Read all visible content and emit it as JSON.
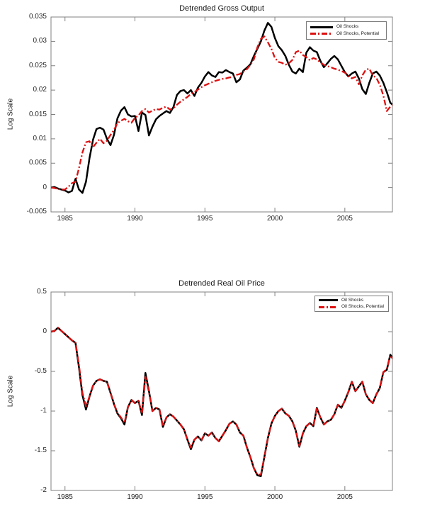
{
  "figure": {
    "background": "#ffffff",
    "axis_color": "#808080",
    "text_color": "#262626"
  },
  "chart_data": [
    {
      "type": "line",
      "title": "Detrended Gross Output",
      "xlabel": "",
      "ylabel": "Log Scale",
      "xlim": [
        1984,
        2008.4
      ],
      "ylim": [
        -0.005,
        0.035
      ],
      "xticks": [
        1985,
        1990,
        1995,
        2000,
        2005
      ],
      "xtick_labels": [
        "1985",
        "1990",
        "1995",
        "2000",
        "2005"
      ],
      "yticks": [
        -0.005,
        0,
        0.005,
        0.01,
        0.015,
        0.02,
        0.025,
        0.03,
        0.035
      ],
      "ytick_labels": [
        "-0.005",
        "0",
        "0.005",
        "0.01",
        "0.015",
        "0.02",
        "0.025",
        "0.03",
        "0.035"
      ],
      "grid": false,
      "legend_position": "top-right",
      "x_start": 1984,
      "x_step": 0.25,
      "series": [
        {
          "name": "Oil Shocks",
          "color": "#000000",
          "style": "solid",
          "line_width": 2.5,
          "values": [
            0.0,
            0.0001,
            -0.0002,
            -0.0004,
            -0.0006,
            -0.001,
            -0.0007,
            0.0018,
            -0.0004,
            -0.0011,
            0.0012,
            0.006,
            0.0098,
            0.012,
            0.0123,
            0.0119,
            0.01,
            0.0087,
            0.0108,
            0.0142,
            0.0158,
            0.0165,
            0.015,
            0.0146,
            0.0147,
            0.0116,
            0.0154,
            0.0149,
            0.0107,
            0.0125,
            0.014,
            0.0147,
            0.0152,
            0.0157,
            0.0153,
            0.0165,
            0.019,
            0.0198,
            0.02,
            0.0193,
            0.02,
            0.0188,
            0.0205,
            0.0215,
            0.0228,
            0.0237,
            0.023,
            0.0227,
            0.0237,
            0.0236,
            0.0241,
            0.0237,
            0.0234,
            0.0216,
            0.0222,
            0.024,
            0.0246,
            0.0253,
            0.027,
            0.0285,
            0.03,
            0.0322,
            0.0338,
            0.033,
            0.0307,
            0.029,
            0.0282,
            0.027,
            0.0252,
            0.0238,
            0.0234,
            0.0244,
            0.0237,
            0.0277,
            0.0288,
            0.0281,
            0.0278,
            0.026,
            0.0247,
            0.0255,
            0.0264,
            0.027,
            0.0263,
            0.025,
            0.0237,
            0.0228,
            0.0234,
            0.0238,
            0.0224,
            0.0202,
            0.0192,
            0.0215,
            0.0234,
            0.0238,
            0.023,
            0.0215,
            0.0196,
            0.0174,
            0.0168
          ]
        },
        {
          "name": "Oil Shocks, Potential",
          "color": "#dd1111",
          "style": "dash-dot",
          "line_width": 2.3,
          "values": [
            0.0,
            -0.0001,
            -0.0003,
            -0.0004,
            -0.0004,
            0.0002,
            0.0009,
            0.0012,
            0.004,
            0.0072,
            0.0093,
            0.0095,
            0.0083,
            0.0092,
            0.01,
            0.0091,
            0.0096,
            0.0108,
            0.0118,
            0.0132,
            0.0137,
            0.0141,
            0.0136,
            0.0133,
            0.0143,
            0.0148,
            0.0157,
            0.0161,
            0.0154,
            0.0158,
            0.0161,
            0.016,
            0.0164,
            0.0166,
            0.016,
            0.0163,
            0.017,
            0.0176,
            0.0181,
            0.0186,
            0.0192,
            0.0196,
            0.0201,
            0.0206,
            0.021,
            0.0213,
            0.0216,
            0.0219,
            0.0221,
            0.0223,
            0.0224,
            0.0226,
            0.0227,
            0.0231,
            0.0233,
            0.0238,
            0.0243,
            0.0252,
            0.0263,
            0.0288,
            0.0305,
            0.031,
            0.0298,
            0.0285,
            0.0266,
            0.0258,
            0.0256,
            0.0252,
            0.0255,
            0.0262,
            0.0278,
            0.0281,
            0.0272,
            0.0268,
            0.0261,
            0.0266,
            0.0263,
            0.0257,
            0.0252,
            0.0249,
            0.0247,
            0.0244,
            0.0242,
            0.0239,
            0.0236,
            0.0229,
            0.0224,
            0.0227,
            0.0212,
            0.023,
            0.0242,
            0.0244,
            0.023,
            0.0225,
            0.0211,
            0.0189,
            0.0157,
            0.0166,
            0.0171
          ]
        }
      ]
    },
    {
      "type": "line",
      "title": "Detrended Real Oil Price",
      "xlabel": "",
      "ylabel": "Log Scale",
      "xlim": [
        1984,
        2008.4
      ],
      "ylim": [
        -2,
        0.5
      ],
      "xticks": [
        1985,
        1990,
        1995,
        2000,
        2005
      ],
      "xtick_labels": [
        "1985",
        "1990",
        "1995",
        "2000",
        "2005"
      ],
      "yticks": [
        -2,
        -1.5,
        -1,
        -0.5,
        0,
        0.5
      ],
      "ytick_labels": [
        "-2",
        "-1.5",
        "-1",
        "-0.5",
        "0",
        "0.5"
      ],
      "grid": false,
      "legend_position": "top-right",
      "x_start": 1984,
      "x_step": 0.25,
      "series": [
        {
          "name": "Oil Shocks",
          "color": "#000000",
          "style": "solid",
          "line_width": 2.5,
          "values": [
            0.0,
            0.01,
            0.05,
            0.01,
            -0.03,
            -0.07,
            -0.11,
            -0.14,
            -0.45,
            -0.8,
            -0.98,
            -0.82,
            -0.68,
            -0.62,
            -0.6,
            -0.62,
            -0.63,
            -0.77,
            -0.91,
            -1.03,
            -1.09,
            -1.17,
            -0.95,
            -0.86,
            -0.9,
            -0.87,
            -1.05,
            -0.52,
            -0.75,
            -1.0,
            -0.96,
            -0.98,
            -1.2,
            -1.08,
            -1.04,
            -1.07,
            -1.12,
            -1.17,
            -1.23,
            -1.36,
            -1.48,
            -1.36,
            -1.32,
            -1.37,
            -1.28,
            -1.31,
            -1.27,
            -1.34,
            -1.38,
            -1.31,
            -1.24,
            -1.16,
            -1.13,
            -1.17,
            -1.27,
            -1.31,
            -1.46,
            -1.58,
            -1.72,
            -1.81,
            -1.82,
            -1.58,
            -1.34,
            -1.16,
            -1.06,
            -1.0,
            -0.97,
            -1.03,
            -1.06,
            -1.13,
            -1.25,
            -1.45,
            -1.28,
            -1.19,
            -1.15,
            -1.19,
            -0.96,
            -1.08,
            -1.17,
            -1.13,
            -1.11,
            -1.04,
            -0.92,
            -0.96,
            -0.87,
            -0.76,
            -0.63,
            -0.75,
            -0.69,
            -0.63,
            -0.79,
            -0.86,
            -0.9,
            -0.79,
            -0.71,
            -0.51,
            -0.48,
            -0.29,
            -0.35
          ]
        },
        {
          "name": "Oil Shocks, Potential",
          "color": "#dd1111",
          "style": "dash-dot",
          "line_width": 2.3,
          "values": [
            0.0,
            0.01,
            0.05,
            0.01,
            -0.03,
            -0.07,
            -0.11,
            -0.14,
            -0.42,
            -0.77,
            -0.94,
            -0.82,
            -0.68,
            -0.62,
            -0.6,
            -0.62,
            -0.63,
            -0.77,
            -0.91,
            -1.02,
            -1.08,
            -1.15,
            -0.95,
            -0.86,
            -0.9,
            -0.87,
            -1.03,
            -0.57,
            -0.76,
            -1.0,
            -0.96,
            -0.98,
            -1.19,
            -1.08,
            -1.04,
            -1.07,
            -1.12,
            -1.17,
            -1.23,
            -1.36,
            -1.46,
            -1.36,
            -1.32,
            -1.37,
            -1.28,
            -1.31,
            -1.27,
            -1.34,
            -1.38,
            -1.31,
            -1.24,
            -1.16,
            -1.13,
            -1.17,
            -1.27,
            -1.31,
            -1.46,
            -1.58,
            -1.72,
            -1.8,
            -1.8,
            -1.58,
            -1.34,
            -1.16,
            -1.06,
            -1.0,
            -0.97,
            -1.03,
            -1.06,
            -1.13,
            -1.25,
            -1.44,
            -1.28,
            -1.19,
            -1.15,
            -1.19,
            -0.96,
            -1.08,
            -1.17,
            -1.13,
            -1.11,
            -1.04,
            -0.92,
            -0.96,
            -0.87,
            -0.76,
            -0.63,
            -0.75,
            -0.69,
            -0.63,
            -0.79,
            -0.86,
            -0.9,
            -0.79,
            -0.71,
            -0.51,
            -0.47,
            -0.3,
            -0.36
          ]
        }
      ]
    }
  ]
}
